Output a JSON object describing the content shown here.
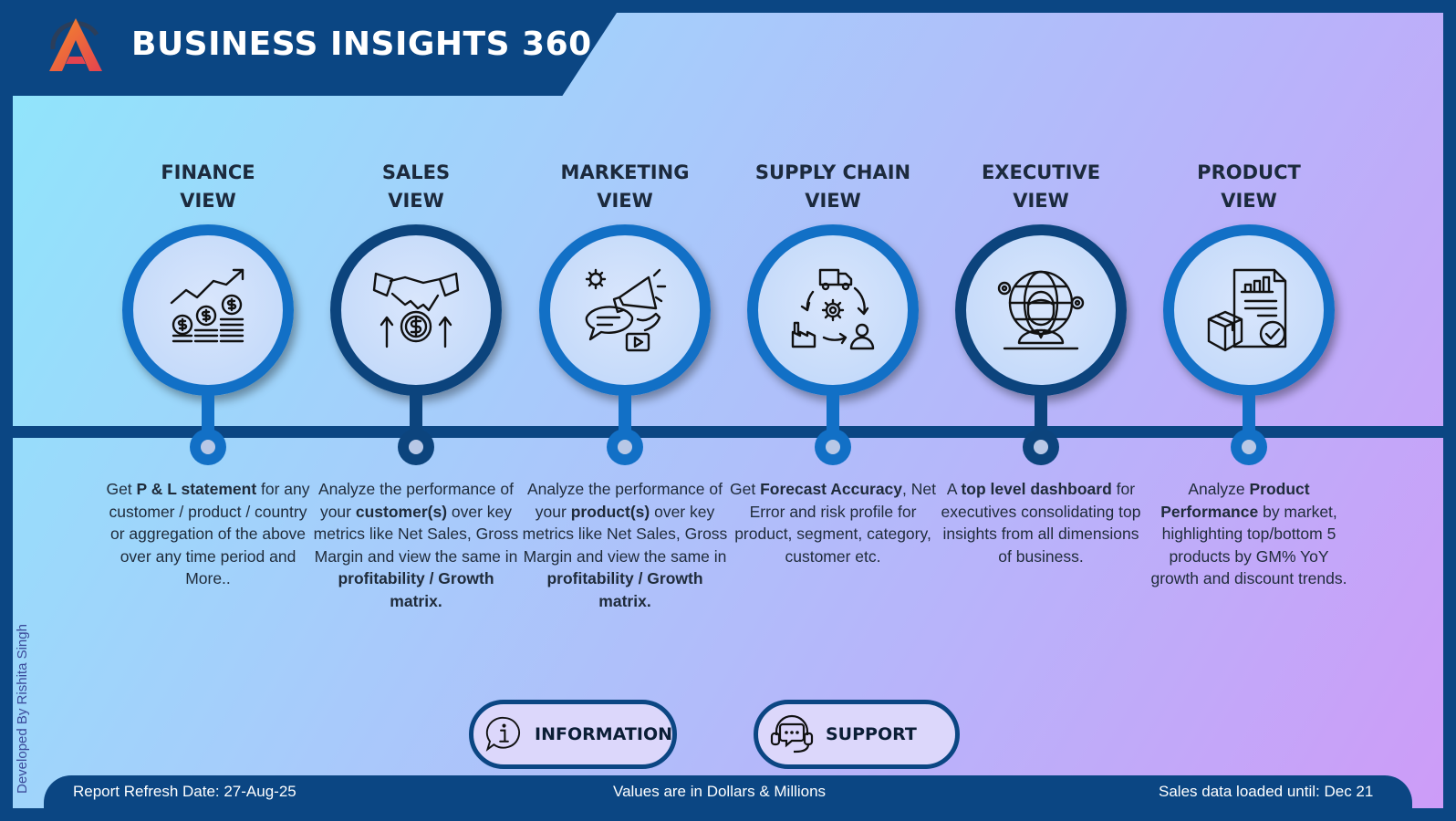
{
  "header": {
    "title": "BUSINESS INSIGHTS 360",
    "logo_icon": "atliq-a-logo-icon"
  },
  "views": [
    {
      "title": "FINANCE\nVIEW",
      "icon": "finance-growth-icon",
      "desc_parts": [
        [
          "Get  ",
          false
        ],
        [
          "P & L statement",
          true
        ],
        [
          " for any customer / product / country or aggregation of the above over any time period and More..",
          false
        ]
      ]
    },
    {
      "title": "SALES\nVIEW",
      "icon": "handshake-dollar-icon",
      "desc_parts": [
        [
          "Analyze the performance of your ",
          false
        ],
        [
          "customer(s)",
          true
        ],
        [
          " over key metrics like Net Sales, Gross Margin and view the same in ",
          false
        ],
        [
          "profitability / Growth matrix.",
          true
        ]
      ]
    },
    {
      "title": "MARKETING\nVIEW",
      "icon": "megaphone-icon",
      "desc_parts": [
        [
          "Analyze the performance of your ",
          false
        ],
        [
          "product(s)",
          true
        ],
        [
          " over key metrics like Net Sales, Gross Margin and view the same in ",
          false
        ],
        [
          "profitability / Growth matrix.",
          true
        ]
      ]
    },
    {
      "title": "SUPPLY CHAIN\nVIEW",
      "icon": "supply-chain-cycle-icon",
      "desc_parts": [
        [
          "Get ",
          false
        ],
        [
          "Forecast Accuracy",
          true
        ],
        [
          ", Net Error and risk profile for product, segment, category, customer etc.",
          false
        ]
      ]
    },
    {
      "title": "EXECUTIVE\nVIEW",
      "icon": "executive-globe-icon",
      "desc_parts": [
        [
          "A ",
          false
        ],
        [
          "top level dashboard",
          true
        ],
        [
          " for executives consolidating top insights from all dimensions of business.",
          false
        ]
      ]
    },
    {
      "title": "PRODUCT\nVIEW",
      "icon": "product-report-icon",
      "desc_parts": [
        [
          "Analyze ",
          false
        ],
        [
          "Product Performance",
          true
        ],
        [
          " by market, highlighting top/bottom 5 products by GM% YoY growth and discount trends.",
          false
        ]
      ]
    }
  ],
  "buttons": {
    "information": {
      "label": "INFORMATION",
      "icon": "info-chat-icon"
    },
    "support": {
      "label": "SUPPORT",
      "icon": "headset-support-icon"
    }
  },
  "footer": {
    "refresh": "Report Refresh Date: 27-Aug-25",
    "values_note": "Values are in Dollars & Millions",
    "sales_loaded": "Sales data loaded until: Dec 21"
  },
  "developer": "Developed By Rishita Singh",
  "colors": {
    "navy": "#0b4683",
    "blue": "#1270c6",
    "dark_ring": "#0c447d"
  }
}
